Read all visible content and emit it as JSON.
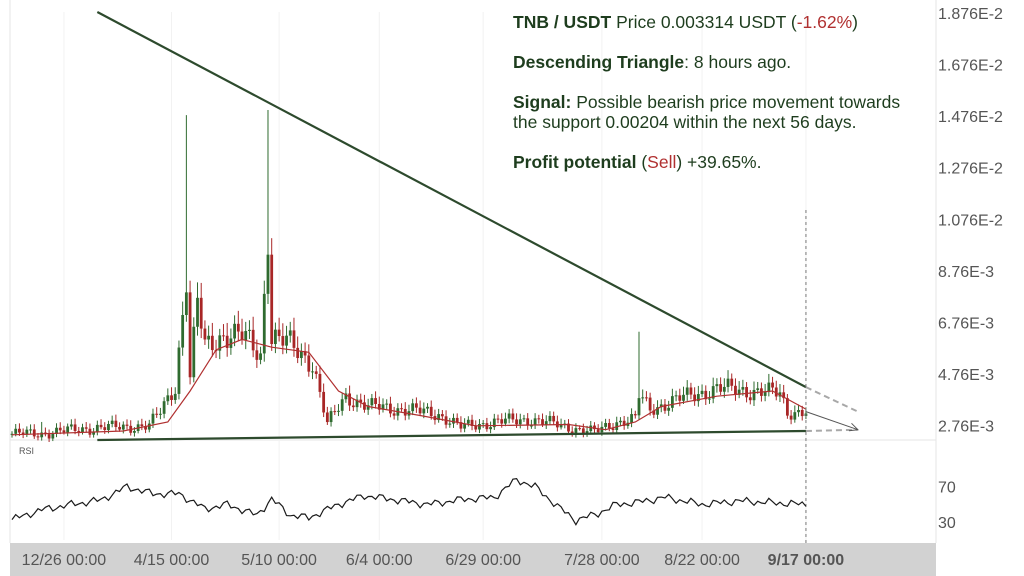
{
  "info": {
    "pair": "TNB / USDT",
    "price_label": "Price",
    "price_value": "0.003314 USDT",
    "change_open": "(",
    "change": "-1.62%",
    "change_close": ")",
    "pattern": "Descending Triangle",
    "pattern_time": ": 8 hours ago.",
    "signal_label": "Signal:",
    "signal_text": "Possible bearish price movement towards the support 0.00204 within the next 56 days.",
    "profit_label": "Profit potential",
    "profit_open": "(",
    "profit_action": "Sell",
    "profit_rest": ") +39.65%."
  },
  "colors": {
    "background": "#ffffff",
    "axis_band": "#d2d2d2",
    "pattern_line": "#2d4a2d",
    "candle_up": "#2f6b2f",
    "candle_down": "#a82626",
    "ma_line": "#b03030",
    "rsi_line": "#1a1a1a",
    "projection": "#a8a8a8",
    "label_text": "#555555",
    "info_text": "#1e3d1e",
    "negative": "#b03030"
  },
  "chart_data": [
    {
      "type": "candlestick",
      "title": "",
      "yscale": "linear",
      "ylim": [
        0.0022,
        0.0188
      ],
      "y_ticks": [
        "1.876E-2",
        "1.676E-2",
        "1.476E-2",
        "1.276E-2",
        "1.076E-2",
        "8.76E-3",
        "6.76E-3",
        "4.76E-3",
        "2.76E-3"
      ],
      "y_tick_values": [
        0.01876,
        0.01676,
        0.01476,
        0.01276,
        0.01076,
        0.00876,
        0.00676,
        0.00476,
        0.00276
      ],
      "x_ticks": [
        "12/26 00:00",
        "4/15 00:00",
        "5/10 00:00",
        "6/4 00:00",
        "6/29 00:00",
        "7/28 00:00",
        "8/22 00:00",
        "9/17 00:00"
      ],
      "x_tick_index": [
        14,
        43,
        72,
        99,
        127,
        159,
        186,
        214
      ],
      "candle_count": 215,
      "key_candles": [
        {
          "i": 0,
          "close": 0.00244
        },
        {
          "i": 8,
          "close": 0.00245,
          "high": 0.0029
        },
        {
          "i": 20,
          "close": 0.00265
        },
        {
          "i": 37,
          "close": 0.00275
        },
        {
          "i": 40,
          "close": 0.0033
        },
        {
          "i": 44,
          "close": 0.0043
        },
        {
          "i": 47,
          "close": 0.0085,
          "high": 0.0148
        },
        {
          "i": 48,
          "close": 0.0046
        },
        {
          "i": 50,
          "close": 0.0075
        },
        {
          "i": 52,
          "close": 0.0058
        },
        {
          "i": 57,
          "close": 0.0063
        },
        {
          "i": 62,
          "close": 0.0062
        },
        {
          "i": 64,
          "close": 0.006
        },
        {
          "i": 67,
          "close": 0.0055
        },
        {
          "i": 69,
          "close": 0.0103,
          "high": 0.015
        },
        {
          "i": 70,
          "close": 0.0062
        },
        {
          "i": 75,
          "close": 0.0059
        },
        {
          "i": 81,
          "close": 0.0052
        },
        {
          "i": 85,
          "close": 0.0028
        },
        {
          "i": 90,
          "close": 0.0039
        },
        {
          "i": 96,
          "close": 0.0035
        },
        {
          "i": 105,
          "close": 0.0034
        },
        {
          "i": 115,
          "close": 0.0032
        },
        {
          "i": 121,
          "close": 0.0027
        },
        {
          "i": 130,
          "close": 0.0029
        },
        {
          "i": 140,
          "close": 0.003
        },
        {
          "i": 150,
          "close": 0.0027
        },
        {
          "i": 157,
          "close": 0.0025
        },
        {
          "i": 163,
          "close": 0.0029
        },
        {
          "i": 168,
          "close": 0.003
        },
        {
          "i": 169,
          "close": 0.0039,
          "high": 0.0064
        },
        {
          "i": 172,
          "close": 0.0034
        },
        {
          "i": 180,
          "close": 0.0038
        },
        {
          "i": 190,
          "close": 0.0042
        },
        {
          "i": 200,
          "close": 0.0041
        },
        {
          "i": 207,
          "close": 0.004
        },
        {
          "i": 209,
          "close": 0.0033
        },
        {
          "i": 214,
          "close": 0.0033
        }
      ],
      "moving_average": [
        {
          "i": 0,
          "v": 0.0024
        },
        {
          "i": 30,
          "v": 0.00255
        },
        {
          "i": 42,
          "v": 0.0029
        },
        {
          "i": 48,
          "v": 0.0041
        },
        {
          "i": 55,
          "v": 0.0057
        },
        {
          "i": 62,
          "v": 0.0061
        },
        {
          "i": 70,
          "v": 0.0058
        },
        {
          "i": 80,
          "v": 0.0056
        },
        {
          "i": 88,
          "v": 0.0041
        },
        {
          "i": 96,
          "v": 0.0035
        },
        {
          "i": 110,
          "v": 0.00315
        },
        {
          "i": 125,
          "v": 0.00275
        },
        {
          "i": 150,
          "v": 0.0028
        },
        {
          "i": 160,
          "v": 0.0026
        },
        {
          "i": 168,
          "v": 0.0029
        },
        {
          "i": 175,
          "v": 0.0035
        },
        {
          "i": 190,
          "v": 0.0039
        },
        {
          "i": 205,
          "v": 0.0041
        },
        {
          "i": 214,
          "v": 0.0034
        }
      ],
      "resistance_line": [
        {
          "i": 23,
          "v": 0.0188
        },
        {
          "i": 214,
          "v": 0.00425
        }
      ],
      "support_line": [
        {
          "i": 23,
          "v": 0.0022
        },
        {
          "i": 214,
          "v": 0.00255
        }
      ],
      "projection": {
        "resistance_end_i": 228,
        "resistance_end_v": 0.0033,
        "support_end_i": 228,
        "support_end_v": 0.0026
      }
    },
    {
      "type": "line",
      "name": "RSI",
      "ylim": [
        10,
        100
      ],
      "y_ticks": [
        "70",
        "30"
      ],
      "y_tick_values": [
        70,
        30
      ],
      "key_points": [
        {
          "i": 0,
          "v": 33
        },
        {
          "i": 8,
          "v": 44
        },
        {
          "i": 16,
          "v": 50
        },
        {
          "i": 24,
          "v": 55
        },
        {
          "i": 31,
          "v": 70
        },
        {
          "i": 38,
          "v": 62
        },
        {
          "i": 45,
          "v": 62
        },
        {
          "i": 52,
          "v": 45
        },
        {
          "i": 58,
          "v": 50
        },
        {
          "i": 66,
          "v": 38
        },
        {
          "i": 70,
          "v": 56
        },
        {
          "i": 75,
          "v": 38
        },
        {
          "i": 80,
          "v": 35
        },
        {
          "i": 88,
          "v": 50
        },
        {
          "i": 95,
          "v": 60
        },
        {
          "i": 102,
          "v": 56
        },
        {
          "i": 112,
          "v": 50
        },
        {
          "i": 122,
          "v": 56
        },
        {
          "i": 130,
          "v": 58
        },
        {
          "i": 136,
          "v": 78
        },
        {
          "i": 141,
          "v": 70
        },
        {
          "i": 147,
          "v": 48
        },
        {
          "i": 152,
          "v": 32
        },
        {
          "i": 158,
          "v": 40
        },
        {
          "i": 163,
          "v": 50
        },
        {
          "i": 168,
          "v": 52
        },
        {
          "i": 176,
          "v": 58
        },
        {
          "i": 186,
          "v": 50
        },
        {
          "i": 196,
          "v": 54
        },
        {
          "i": 205,
          "v": 52
        },
        {
          "i": 214,
          "v": 50
        }
      ]
    }
  ],
  "rsi_label": "RSI"
}
